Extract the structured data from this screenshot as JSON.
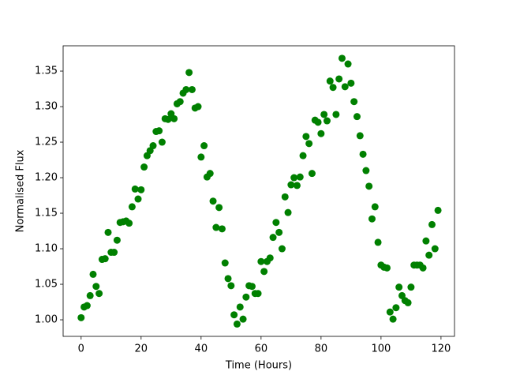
{
  "chart_data": {
    "type": "scatter",
    "xlabel": "Time (Hours)",
    "ylabel": "Normalised Flux",
    "color": "#008000",
    "x": [
      0,
      1,
      2,
      3,
      4,
      5,
      6,
      7,
      8,
      9,
      10,
      11,
      12,
      13,
      14,
      15,
      16,
      17,
      18,
      19,
      20,
      21,
      22,
      23,
      24,
      25,
      26,
      27,
      28,
      29,
      30,
      31,
      32,
      33,
      34,
      35,
      36,
      37,
      38,
      39,
      40,
      41,
      42,
      43,
      44,
      45,
      46,
      47,
      48,
      49,
      50,
      51,
      52,
      53,
      54,
      55,
      56,
      57,
      58,
      59,
      60,
      61,
      62,
      63,
      64,
      65,
      66,
      67,
      68,
      69,
      70,
      71,
      72,
      73,
      74,
      75,
      76,
      77,
      78,
      79,
      80,
      81,
      82,
      83,
      84,
      85,
      86,
      87,
      88,
      89,
      90,
      91,
      92,
      93,
      94,
      95,
      96,
      97,
      98,
      99,
      100,
      101,
      102,
      103,
      104,
      105,
      106,
      107,
      108,
      109,
      110,
      111,
      112,
      113,
      114,
      115,
      116,
      117,
      118,
      119
    ],
    "values": [
      1.003,
      1.018,
      1.02,
      1.034,
      1.064,
      1.047,
      1.037,
      1.085,
      1.086,
      1.123,
      1.095,
      1.095,
      1.112,
      1.137,
      1.138,
      1.139,
      1.136,
      1.159,
      1.184,
      1.17,
      1.183,
      1.215,
      1.231,
      1.238,
      1.245,
      1.265,
      1.266,
      1.25,
      1.283,
      1.282,
      1.29,
      1.283,
      1.304,
      1.307,
      1.319,
      1.324,
      1.348,
      1.324,
      1.298,
      1.3,
      1.229,
      1.245,
      1.201,
      1.206,
      1.167,
      1.13,
      1.158,
      1.128,
      1.08,
      1.058,
      1.048,
      1.007,
      0.994,
      1.018,
      1.001,
      1.032,
      1.048,
      1.047,
      1.037,
      1.037,
      1.082,
      1.068,
      1.082,
      1.087,
      1.116,
      1.137,
      1.123,
      1.1,
      1.173,
      1.151,
      1.19,
      1.2,
      1.189,
      1.201,
      1.231,
      1.258,
      1.248,
      1.206,
      1.281,
      1.278,
      1.262,
      1.289,
      1.28,
      1.336,
      1.327,
      1.289,
      1.339,
      1.368,
      1.328,
      1.36,
      1.333,
      1.307,
      1.286,
      1.259,
      1.233,
      1.21,
      1.188,
      1.142,
      1.159,
      1.109,
      1.077,
      1.074,
      1.073,
      1.011,
      1.001,
      1.017,
      1.046,
      1.034,
      1.027,
      1.024,
      1.046,
      1.077,
      1.077,
      1.077,
      1.073,
      1.111,
      1.091,
      1.134,
      1.1,
      1.154
    ],
    "xlim": [
      -6,
      124.5
    ],
    "xticks": [
      0,
      20,
      40,
      60,
      80,
      100,
      120
    ],
    "ylim": [
      0.9767,
      1.3856
    ],
    "yticks": [
      {
        "value": 1.0,
        "label": "1.00"
      },
      {
        "value": 1.05,
        "label": "1.05"
      },
      {
        "value": 1.1,
        "label": "1.10"
      },
      {
        "value": 1.15,
        "label": "1.15"
      },
      {
        "value": 1.2,
        "label": "1.20"
      },
      {
        "value": 1.25,
        "label": "1.25"
      },
      {
        "value": 1.3,
        "label": "1.30"
      },
      {
        "value": 1.35,
        "label": "1.35"
      }
    ]
  }
}
